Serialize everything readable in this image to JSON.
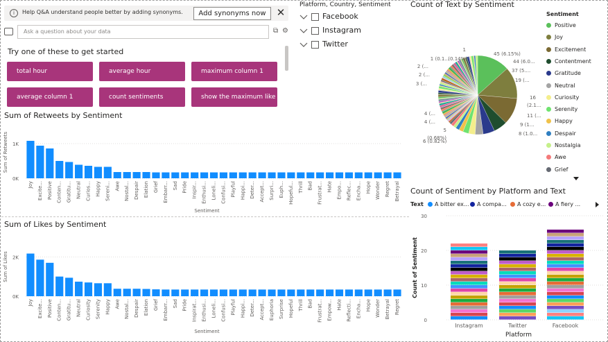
{
  "qa": {
    "banner_text": "Help Q&A understand people better by adding synonyms.",
    "synonyms_button": "Add synonyms now",
    "input_placeholder": "Ask a question about your data",
    "try_heading": "Try one of these to get started",
    "suggestions": [
      "total hour",
      "average hour",
      "maximum column 1",
      "average column 1",
      "count sentiments",
      "show the maximum like"
    ]
  },
  "slicer": {
    "title": "Platform, Country, Sentiment",
    "items": [
      "Facebook",
      "Instagram",
      "Twitter"
    ]
  },
  "colors": {
    "bar": "#118dff",
    "qa_suggestion": "#a8357b"
  },
  "chart_data": [
    {
      "type": "bar",
      "title": "Sum of Retweets by Sentiment",
      "xlabel": "Sentiment",
      "ylabel": "Sum of Retweets",
      "y_ticks": [
        "0K",
        "1K"
      ],
      "ylim": [
        0,
        1500
      ],
      "categories": [
        "Joy",
        "Excite...",
        "Positive",
        "Conten...",
        "Gratitu...",
        "Neutral",
        "Curios...",
        "Happy",
        "Sereni...",
        "Awe",
        "Nostal...",
        "Despair",
        "Elation",
        "Grief",
        "Embarr...",
        "Sad",
        "Pride",
        "Inspir...",
        "Enthusi...",
        "Loneli...",
        "Confusi...",
        "Playful",
        "Happi...",
        "Deter...",
        "Accept...",
        "Surpri...",
        "Euph...",
        "Hopeful...",
        "Thrill",
        "Bad",
        "Frustrat...",
        "Hate",
        "Empo...",
        "Reflec...",
        "Encha...",
        "Hope",
        "Wonder",
        "Regret",
        "Betrayal"
      ],
      "values": [
        1080,
        940,
        860,
        500,
        470,
        390,
        360,
        330,
        330,
        180,
        180,
        180,
        180,
        170,
        170,
        170,
        170,
        170,
        170,
        170,
        170,
        170,
        170,
        170,
        170,
        170,
        170,
        170,
        170,
        170,
        170,
        170,
        170,
        170,
        170,
        170,
        170,
        170,
        170
      ]
    },
    {
      "type": "bar",
      "title": "Sum of Likes by Sentiment",
      "xlabel": "Sentiment",
      "ylabel": "Sum of Likes",
      "y_ticks": [
        "0K",
        "2K"
      ],
      "ylim": [
        0,
        3000
      ],
      "categories": [
        "Joy",
        "Excite...",
        "Positive",
        "Conten...",
        "Gratitu...",
        "Neutral",
        "Curiosity",
        "Serenity",
        "Happy",
        "Awe",
        "Nostal...",
        "Despair",
        "Elation",
        "Grief",
        "Embarr...",
        "Sad",
        "Pride",
        "Inspirat...",
        "Enthusi...",
        "Loneli...",
        "Confusi...",
        "Playful",
        "Happi...",
        "Deter...",
        "Accept...",
        "Euphoria",
        "Surprise",
        "Hopeful",
        "Thrill",
        "Bad",
        "Frustrat...",
        "Empow...",
        "Hate",
        "Reflecti...",
        "Encha...",
        "Hope",
        "Wonder",
        "Betrayal",
        "Regret"
      ],
      "values": [
        2170,
        1860,
        1700,
        1000,
        940,
        740,
        700,
        660,
        660,
        380,
        380,
        380,
        370,
        350,
        340,
        340,
        340,
        340,
        340,
        340,
        340,
        340,
        340,
        340,
        340,
        340,
        340,
        340,
        340,
        340,
        340,
        340,
        340,
        340,
        340,
        340,
        340,
        340,
        340
      ]
    },
    {
      "type": "pie",
      "title": "Count of Text by Sentiment",
      "legend_title": "Sentiment",
      "legend": [
        "Positive",
        "Joy",
        "Excitement",
        "Contentment",
        "Gratitude",
        "Neutral",
        "Curiosity",
        "Serenity",
        "Happy",
        "Despair",
        "Nostalgia",
        "Awe",
        "Grief"
      ],
      "legend_colors": [
        "#5bc05b",
        "#7e7e3e",
        "#7b6a33",
        "#1f4d2e",
        "#2a3a8c",
        "#a4a4a4",
        "#f4ee8c",
        "#6fe36f",
        "#f0c24a",
        "#2f7fc1",
        "#c5f08a",
        "#f47a7a",
        "#666a73"
      ],
      "slices": [
        45,
        44,
        37,
        19,
        16,
        11,
        9,
        8,
        6,
        5,
        4,
        4,
        3,
        2,
        2,
        1,
        1
      ],
      "data_labels": [
        "45 (6.15%)",
        "44 (6.0...",
        "37 (5....",
        "19 (...",
        "16",
        "(2.1...",
        "11 (...",
        "9 (1...",
        "8 (1.0...",
        "6 (0.82%)",
        "5",
        "(0.68%)",
        "4 (...",
        "4 (...",
        "3 (...",
        "2 (...",
        "2 (...",
        "1 (0.1...",
        "(0.14%)",
        "1"
      ]
    },
    {
      "type": "bar",
      "title": "Count of Sentiment by Platform and Text",
      "xlabel": "Platform",
      "ylabel": "Count of Sentiment",
      "legend_title": "Text",
      "legend": [
        "A bitter ex...",
        "A compa...",
        "A cozy e...",
        "A fiery ..."
      ],
      "legend_colors": [
        "#118dff",
        "#12239e",
        "#e66c37",
        "#6b007b"
      ],
      "categories": [
        "Instagram",
        "Twitter",
        "Facebook"
      ],
      "values": [
        22,
        20,
        26
      ],
      "y_ticks": [
        "0",
        "10",
        "20",
        "30"
      ],
      "ylim": [
        0,
        30
      ]
    }
  ]
}
